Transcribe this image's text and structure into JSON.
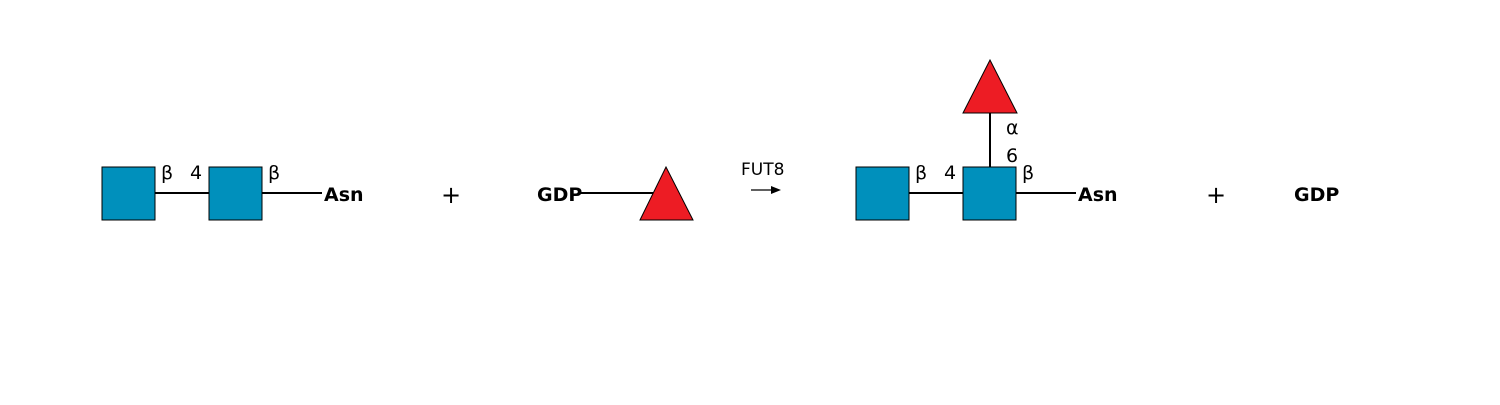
{
  "reaction": {
    "enzyme": "FUT8",
    "plus_sign": "+",
    "colors": {
      "glcnac": "#0090BC",
      "fucose": "#ED1C24",
      "bond": "#000000"
    },
    "substrate_glycan": {
      "residues": [
        "GlcNAc",
        "GlcNAc"
      ],
      "link_anomer_1": "β",
      "link_position_1": "4",
      "link_anomer_2": "β",
      "aglycone": "Asn"
    },
    "donor": {
      "carrier": "GDP",
      "residue": "Fucose"
    },
    "product_glycan": {
      "residues": [
        "GlcNAc",
        "GlcNAc",
        "Fucose"
      ],
      "link_anomer_1": "β",
      "link_position_1": "4",
      "link_anomer_2": "β",
      "fucose_anomer": "α",
      "fucose_position": "6",
      "aglycone": "Asn"
    },
    "byproduct": {
      "label": "GDP"
    }
  }
}
